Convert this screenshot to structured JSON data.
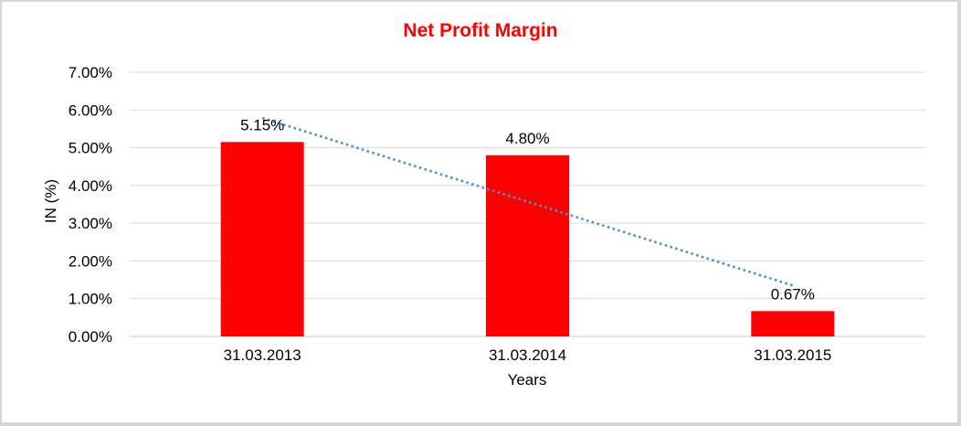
{
  "chart_data": {
    "type": "bar",
    "title": "Net Profit Margin",
    "categories": [
      "31.03.2013",
      "31.03.2014",
      "31.03.2015"
    ],
    "values": [
      5.15,
      4.8,
      0.67
    ],
    "value_labels": [
      "5.15%",
      "4.80%",
      "0.67%"
    ],
    "xlabel": "Years",
    "ylabel": "IN (%)",
    "ylim": [
      0,
      7
    ],
    "y_tick_step": 1,
    "y_ticks": [
      "7.00%",
      "6.00%",
      "5.00%",
      "4.00%",
      "3.00%",
      "2.00%",
      "1.00%",
      "0.00%"
    ],
    "grid": true,
    "legend": "none",
    "trendline": {
      "type": "linear",
      "style": "dotted",
      "start_value": 5.79,
      "end_value": 1.35
    },
    "colors": {
      "title": "#FF0000",
      "bar": "#FF0000",
      "gridline": "#D9D9D9",
      "axis_line": "#C9C9C9",
      "trendline": "#4E91C9",
      "text": "#000000",
      "border": "#D5D5D5"
    }
  }
}
